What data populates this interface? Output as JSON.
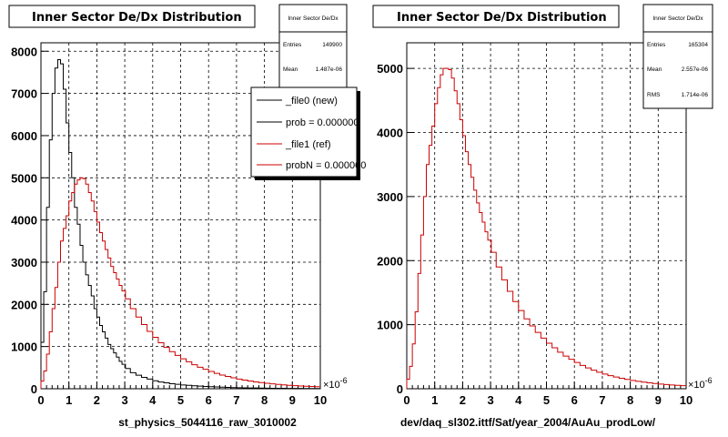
{
  "footer_text": "",
  "chart_data": [
    {
      "type": "line",
      "title": "Inner Sector De/Dx Distribution",
      "xlabel": "st_physics_5044116_raw_3010002",
      "ylabel": "",
      "xlim": [
        0,
        10
      ],
      "ylim": [
        0,
        8200
      ],
      "x_exponent": "-6",
      "x_ticks": [
        0,
        1,
        2,
        3,
        4,
        5,
        6,
        7,
        8,
        9,
        10
      ],
      "y_ticks": [
        0,
        1000,
        2000,
        3000,
        4000,
        5000,
        6000,
        7000,
        8000
      ],
      "grid": true,
      "x": [
        0.05,
        0.15,
        0.25,
        0.35,
        0.45,
        0.55,
        0.65,
        0.75,
        0.85,
        0.95,
        1.05,
        1.15,
        1.25,
        1.35,
        1.45,
        1.55,
        1.65,
        1.75,
        1.85,
        1.95,
        2.05,
        2.15,
        2.25,
        2.35,
        2.45,
        2.55,
        2.65,
        2.75,
        2.85,
        2.95,
        3.1,
        3.3,
        3.5,
        3.7,
        3.9,
        4.1,
        4.3,
        4.5,
        4.7,
        4.9,
        5.1,
        5.3,
        5.5,
        5.7,
        5.9,
        6.1,
        6.3,
        6.5,
        6.7,
        6.9,
        7.1,
        7.3,
        7.5,
        7.7,
        7.9,
        8.1,
        8.3,
        8.5,
        8.7,
        8.9,
        9.1,
        9.3,
        9.5,
        9.7,
        9.9
      ],
      "series": [
        {
          "name": "_file0 (new)",
          "color": "#000000",
          "values": [
            1100,
            2300,
            4300,
            5900,
            7000,
            7600,
            7800,
            7700,
            7100,
            6300,
            5600,
            5000,
            4300,
            3900,
            3400,
            3000,
            2700,
            2450,
            2200,
            1900,
            1700,
            1500,
            1350,
            1200,
            1050,
            950,
            850,
            750,
            650,
            580,
            480,
            380,
            320,
            270,
            230,
            190,
            160,
            140,
            120,
            105,
            90,
            80,
            70,
            62,
            55,
            48,
            42,
            37,
            32,
            28,
            25,
            22,
            20,
            18,
            16,
            14,
            12,
            11,
            10,
            9,
            8,
            7,
            6,
            5,
            5
          ]
        },
        {
          "name": "_file1 (ref)",
          "color": "#cc0000",
          "values": [
            180,
            420,
            820,
            1350,
            1900,
            2400,
            3000,
            3500,
            3800,
            4100,
            4450,
            4650,
            4850,
            4950,
            5000,
            4980,
            4850,
            4650,
            4450,
            4200,
            3950,
            3700,
            3500,
            3300,
            3100,
            2900,
            2750,
            2600,
            2450,
            2320,
            2130,
            1900,
            1700,
            1520,
            1360,
            1220,
            1090,
            980,
            880,
            790,
            710,
            640,
            570,
            510,
            460,
            410,
            365,
            325,
            290,
            258,
            230,
            205,
            183,
            163,
            145,
            130,
            116,
            103,
            92,
            82,
            73,
            66,
            59,
            53,
            48
          ]
        }
      ],
      "stats": {
        "title": "Inner Sector De/Dx",
        "entries_label": "Entries",
        "entries_value": "149900",
        "mean_label": "Mean",
        "mean_value": "1.487e-06"
      },
      "legend": {
        "position": "top-right",
        "entries": [
          "_file0 (new)",
          "prob = 0.000000",
          "_file1 (ref)",
          "probN = 0.000000"
        ]
      }
    },
    {
      "type": "line",
      "title": "Inner Sector De/Dx Distribution",
      "xlabel": "dev/daq_sl302.ittf/Sat/year_2004/AuAu_prodLow/",
      "ylabel": "",
      "xlim": [
        0,
        10
      ],
      "ylim": [
        0,
        5400
      ],
      "x_exponent": "-6",
      "x_ticks": [
        0,
        1,
        2,
        3,
        4,
        5,
        6,
        7,
        8,
        9,
        10
      ],
      "y_ticks": [
        0,
        1000,
        2000,
        3000,
        4000,
        5000
      ],
      "grid": true,
      "x": [
        0.05,
        0.15,
        0.25,
        0.35,
        0.45,
        0.55,
        0.65,
        0.75,
        0.85,
        0.95,
        1.05,
        1.15,
        1.25,
        1.35,
        1.45,
        1.55,
        1.65,
        1.75,
        1.85,
        1.95,
        2.05,
        2.15,
        2.25,
        2.35,
        2.45,
        2.55,
        2.65,
        2.75,
        2.85,
        2.95,
        3.1,
        3.3,
        3.5,
        3.7,
        3.9,
        4.1,
        4.3,
        4.5,
        4.7,
        4.9,
        5.1,
        5.3,
        5.5,
        5.7,
        5.9,
        6.1,
        6.3,
        6.5,
        6.7,
        6.9,
        7.1,
        7.3,
        7.5,
        7.7,
        7.9,
        8.1,
        8.3,
        8.5,
        8.7,
        8.9,
        9.1,
        9.3,
        9.5,
        9.7,
        9.9
      ],
      "series": [
        {
          "name": "",
          "color": "#cc0000",
          "values": [
            150,
            350,
            700,
            1200,
            1800,
            2400,
            3000,
            3500,
            3800,
            4100,
            4450,
            4700,
            4900,
            5000,
            5000,
            4980,
            4850,
            4650,
            4450,
            4200,
            3950,
            3700,
            3500,
            3300,
            3100,
            2900,
            2750,
            2600,
            2450,
            2320,
            2130,
            1900,
            1700,
            1520,
            1360,
            1220,
            1090,
            980,
            880,
            790,
            710,
            640,
            570,
            510,
            460,
            410,
            365,
            325,
            290,
            258,
            230,
            205,
            183,
            163,
            145,
            130,
            116,
            103,
            92,
            82,
            73,
            66,
            59,
            53,
            48
          ]
        }
      ],
      "stats": {
        "title": "Inner Sector De/Dx",
        "entries_label": "Entries",
        "entries_value": "165304",
        "mean_label": "Mean",
        "mean_value": "2.557e-06",
        "rms_label": "RMS",
        "rms_value": "1.714e-06"
      }
    }
  ]
}
